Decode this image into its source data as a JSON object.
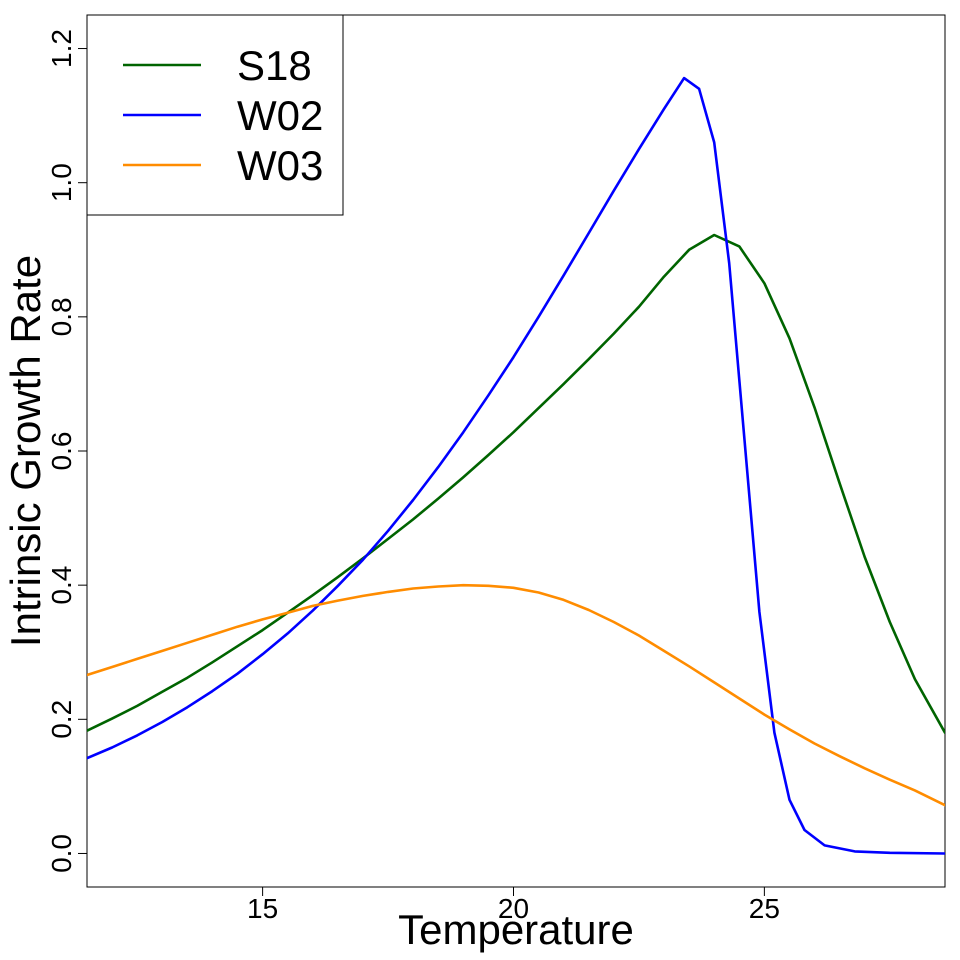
{
  "chart_data": {
    "type": "line",
    "xlabel": "Temperature",
    "ylabel": "Intrinsic Growth Rate",
    "xlim": [
      11.5,
      28.6
    ],
    "ylim": [
      -0.05,
      1.25
    ],
    "xticks": [
      "15",
      "20",
      "25"
    ],
    "yticks": [
      "0.0",
      "0.2",
      "0.4",
      "0.6",
      "0.8",
      "1.0",
      "1.2"
    ],
    "grid": false,
    "legend_position": "top-left",
    "series": [
      {
        "name": "S18",
        "color": "#006400",
        "points": [
          [
            11.5,
            0.183
          ],
          [
            12.0,
            0.201
          ],
          [
            12.5,
            0.22
          ],
          [
            13.0,
            0.241
          ],
          [
            13.5,
            0.262
          ],
          [
            14.0,
            0.285
          ],
          [
            14.5,
            0.309
          ],
          [
            15.0,
            0.333
          ],
          [
            15.5,
            0.359
          ],
          [
            16.0,
            0.385
          ],
          [
            16.5,
            0.412
          ],
          [
            17.0,
            0.44
          ],
          [
            17.5,
            0.469
          ],
          [
            18.0,
            0.498
          ],
          [
            18.5,
            0.529
          ],
          [
            19.0,
            0.561
          ],
          [
            19.5,
            0.594
          ],
          [
            20.0,
            0.628
          ],
          [
            20.5,
            0.664
          ],
          [
            21.0,
            0.7
          ],
          [
            21.5,
            0.737
          ],
          [
            22.0,
            0.775
          ],
          [
            22.5,
            0.815
          ],
          [
            23.0,
            0.86
          ],
          [
            23.5,
            0.9
          ],
          [
            24.0,
            0.922
          ],
          [
            24.5,
            0.905
          ],
          [
            25.0,
            0.85
          ],
          [
            25.5,
            0.768
          ],
          [
            26.0,
            0.665
          ],
          [
            26.5,
            0.552
          ],
          [
            27.0,
            0.442
          ],
          [
            27.5,
            0.345
          ],
          [
            28.0,
            0.26
          ],
          [
            28.6,
            0.18
          ]
        ]
      },
      {
        "name": "W02",
        "color": "#0000ff",
        "points": [
          [
            11.5,
            0.142
          ],
          [
            12.0,
            0.158
          ],
          [
            12.5,
            0.176
          ],
          [
            13.0,
            0.196
          ],
          [
            13.5,
            0.218
          ],
          [
            14.0,
            0.242
          ],
          [
            14.5,
            0.268
          ],
          [
            15.0,
            0.297
          ],
          [
            15.5,
            0.328
          ],
          [
            16.0,
            0.362
          ],
          [
            16.5,
            0.399
          ],
          [
            17.0,
            0.438
          ],
          [
            17.5,
            0.481
          ],
          [
            18.0,
            0.527
          ],
          [
            18.5,
            0.576
          ],
          [
            19.0,
            0.628
          ],
          [
            19.5,
            0.683
          ],
          [
            20.0,
            0.74
          ],
          [
            20.5,
            0.8
          ],
          [
            21.0,
            0.862
          ],
          [
            21.5,
            0.925
          ],
          [
            22.0,
            0.988
          ],
          [
            22.5,
            1.05
          ],
          [
            23.0,
            1.11
          ],
          [
            23.4,
            1.156
          ],
          [
            23.7,
            1.14
          ],
          [
            24.0,
            1.06
          ],
          [
            24.3,
            0.88
          ],
          [
            24.6,
            0.62
          ],
          [
            24.9,
            0.36
          ],
          [
            25.2,
            0.18
          ],
          [
            25.5,
            0.08
          ],
          [
            25.8,
            0.035
          ],
          [
            26.2,
            0.012
          ],
          [
            26.8,
            0.003
          ],
          [
            27.5,
            0.001
          ],
          [
            28.6,
            0.0
          ]
        ]
      },
      {
        "name": "W03",
        "color": "#ff8c00",
        "points": [
          [
            11.5,
            0.266
          ],
          [
            12.0,
            0.278
          ],
          [
            12.5,
            0.29
          ],
          [
            13.0,
            0.302
          ],
          [
            13.5,
            0.314
          ],
          [
            14.0,
            0.326
          ],
          [
            14.5,
            0.338
          ],
          [
            15.0,
            0.349
          ],
          [
            15.5,
            0.359
          ],
          [
            16.0,
            0.369
          ],
          [
            16.5,
            0.377
          ],
          [
            17.0,
            0.384
          ],
          [
            17.5,
            0.39
          ],
          [
            18.0,
            0.395
          ],
          [
            18.5,
            0.398
          ],
          [
            19.0,
            0.4
          ],
          [
            19.5,
            0.399
          ],
          [
            20.0,
            0.396
          ],
          [
            20.5,
            0.389
          ],
          [
            21.0,
            0.378
          ],
          [
            21.5,
            0.363
          ],
          [
            22.0,
            0.345
          ],
          [
            22.5,
            0.325
          ],
          [
            23.0,
            0.302
          ],
          [
            23.5,
            0.279
          ],
          [
            24.0,
            0.255
          ],
          [
            24.5,
            0.231
          ],
          [
            25.0,
            0.207
          ],
          [
            25.5,
            0.185
          ],
          [
            26.0,
            0.164
          ],
          [
            26.5,
            0.145
          ],
          [
            27.0,
            0.127
          ],
          [
            27.5,
            0.11
          ],
          [
            28.0,
            0.094
          ],
          [
            28.6,
            0.072
          ]
        ]
      }
    ]
  }
}
